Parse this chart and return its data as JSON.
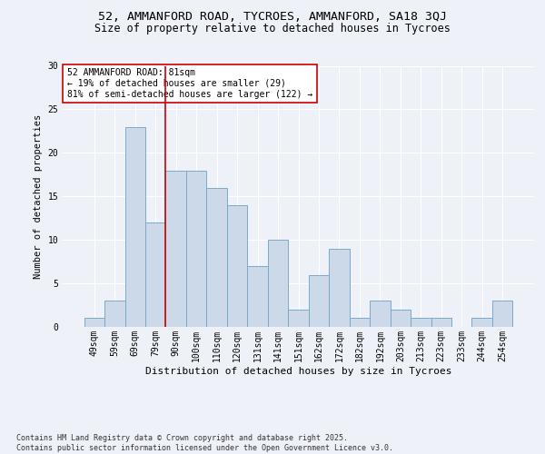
{
  "title1": "52, AMMANFORD ROAD, TYCROES, AMMANFORD, SA18 3QJ",
  "title2": "Size of property relative to detached houses in Tycroes",
  "xlabel": "Distribution of detached houses by size in Tycroes",
  "ylabel": "Number of detached properties",
  "bin_labels": [
    "49sqm",
    "59sqm",
    "69sqm",
    "79sqm",
    "90sqm",
    "100sqm",
    "110sqm",
    "120sqm",
    "131sqm",
    "141sqm",
    "151sqm",
    "162sqm",
    "172sqm",
    "182sqm",
    "192sqm",
    "203sqm",
    "213sqm",
    "223sqm",
    "233sqm",
    "244sqm",
    "254sqm"
  ],
  "bar_values": [
    1,
    3,
    23,
    12,
    18,
    18,
    16,
    14,
    7,
    10,
    2,
    6,
    9,
    1,
    3,
    2,
    1,
    1,
    0,
    1,
    3
  ],
  "bar_color": "#ccd9e8",
  "bar_edge_color": "#7aaac8",
  "ylim": [
    0,
    30
  ],
  "yticks": [
    0,
    5,
    10,
    15,
    20,
    25,
    30
  ],
  "property_line_color": "#cc0000",
  "annotation_text": "52 AMMANFORD ROAD: 81sqm\n← 19% of detached houses are smaller (29)\n81% of semi-detached houses are larger (122) →",
  "annotation_box_color": "#ffffff",
  "annotation_box_edge": "#cc0000",
  "background_color": "#eef2f8",
  "grid_color": "#ffffff",
  "footer_text": "Contains HM Land Registry data © Crown copyright and database right 2025.\nContains public sector information licensed under the Open Government Licence v3.0.",
  "title1_fontsize": 9.5,
  "title2_fontsize": 8.5,
  "xlabel_fontsize": 8,
  "ylabel_fontsize": 7.5,
  "tick_fontsize": 7,
  "annotation_fontsize": 7,
  "footer_fontsize": 6
}
